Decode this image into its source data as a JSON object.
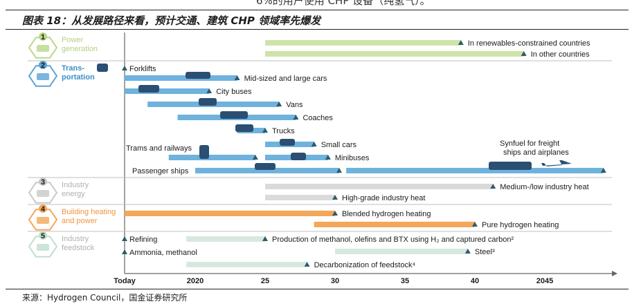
{
  "top_fragment": "6%的用户使用 CHP 设备（纯氢气）。",
  "caption": "图表 18：从发展路径来看，预计交通、建筑 CHP 领域率先爆发",
  "source": "来源：Hydrogen Council，国金证券研究所",
  "colors": {
    "power": "#cfe3a9",
    "transport": "#6fb2dd",
    "industry_energy": "#dadada",
    "building": "#f4a65a",
    "feedstock": "#d6e9df",
    "marker": "#2f5b6b",
    "category_text": "#b0b0b0",
    "transport_text": "#3b8fc7",
    "building_text": "#f0943f"
  },
  "chart_data": {
    "type": "gantt",
    "title": "图表 18：从发展路径来看，预计交通、建筑 CHP 领域率先爆发",
    "x_axis": {
      "labels": [
        "Today",
        "2020",
        "25",
        "30",
        "35",
        "40",
        "2045"
      ],
      "values": [
        2016,
        2020,
        2025,
        2030,
        2035,
        2040,
        2045
      ],
      "range": [
        2016,
        2050
      ]
    },
    "categories": [
      {
        "name": "Power generation",
        "icon": "power-plant-icon",
        "items": [
          {
            "label": "In renewables-constrained countries",
            "start": 2025,
            "end": 2039
          },
          {
            "label": "In other countries",
            "start": 2025,
            "end": 2043.5
          }
        ]
      },
      {
        "name": "Trans-portation",
        "icon": "car-icon",
        "items": [
          {
            "label": "Forklifts",
            "start": 2016,
            "end": 2016,
            "marker": 2016
          },
          {
            "label": "Mid-sized and large cars",
            "start": 2016,
            "end": 2023
          },
          {
            "label": "City buses",
            "start": 2016,
            "end": 2021
          },
          {
            "label": "Vans",
            "start": 2017.3,
            "end": 2026
          },
          {
            "label": "Coaches",
            "start": 2019,
            "end": 2027.2
          },
          {
            "label": "Trucks",
            "start": 2023,
            "end": 2025
          },
          {
            "label": "Small cars",
            "start": 2025,
            "end": 2028.5
          },
          {
            "label": "Trams and railways",
            "start": 2018.5,
            "end": 2024.3
          },
          {
            "label": "Minibuses",
            "start": 2025,
            "end": 2029.5
          },
          {
            "label": "Passenger ships",
            "start": 2020,
            "end": 2030.3
          },
          {
            "label": "Synfuel for freight ships and airplanes",
            "start": 2030.8,
            "end": 2049.2
          }
        ]
      },
      {
        "name": "Industry energy",
        "icon": "factory-icon",
        "items": [
          {
            "label": "Medium-/low industry heat",
            "start": 2025,
            "end": 2041.3
          },
          {
            "label": "High-grade industry heat",
            "start": 2025,
            "end": 2030
          }
        ]
      },
      {
        "name": "Building heating and power",
        "icon": "building-icon",
        "items": [
          {
            "label": "Blended hydrogen heating",
            "start": 2016,
            "end": 2030
          },
          {
            "label": "Pure hydrogen heating",
            "start": 2028.5,
            "end": 2040
          }
        ]
      },
      {
        "name": "Industry feedstock",
        "icon": "flask-icon",
        "items": [
          {
            "label": "Refining",
            "start": 2016,
            "end": 2016,
            "marker": 2016
          },
          {
            "label": "Ammonia, methanol",
            "start": 2016,
            "end": 2016,
            "marker": 2016
          },
          {
            "label": "Production of methanol, olefins and BTX using H₂ and captured carbon²",
            "start": 2019.5,
            "end": 2025
          },
          {
            "label": "Steel³",
            "start": 2030,
            "end": 2039.5
          },
          {
            "label": "Decarbonization of feedstock⁴",
            "start": 2019.5,
            "end": 2028
          }
        ]
      }
    ]
  }
}
